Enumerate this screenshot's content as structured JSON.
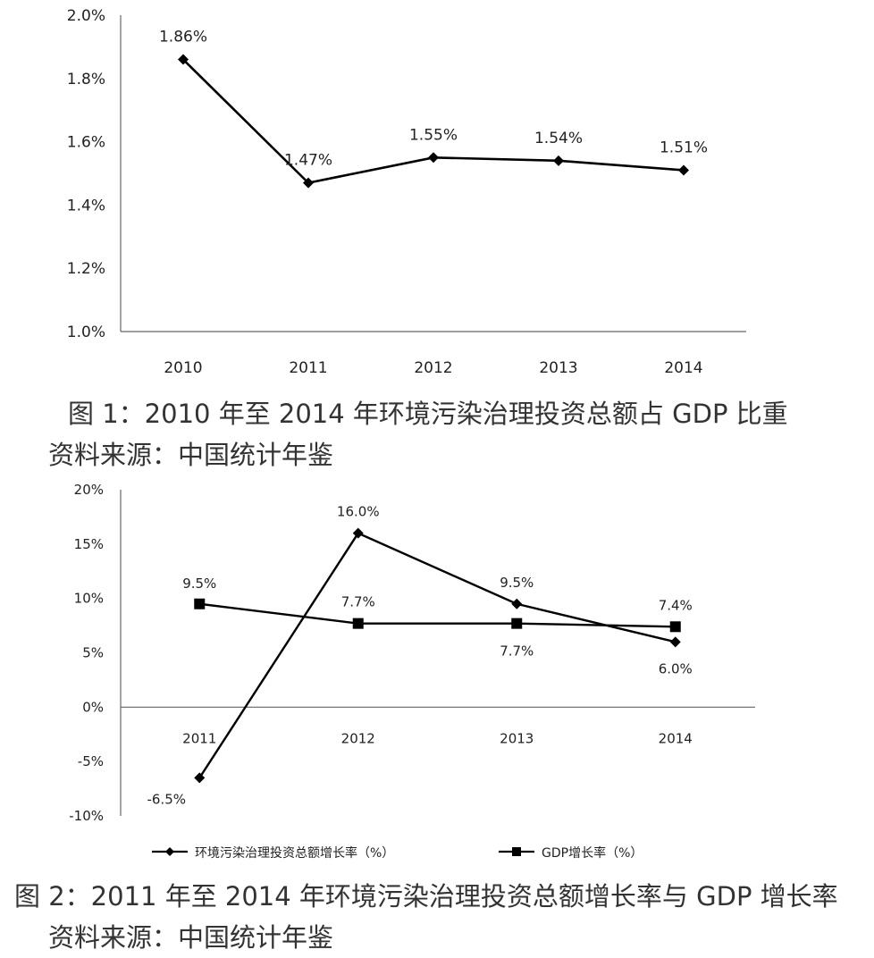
{
  "chart_data": [
    {
      "type": "line",
      "categories": [
        "2010",
        "2011",
        "2012",
        "2013",
        "2014"
      ],
      "series": [
        {
          "values": [
            1.86,
            1.47,
            1.55,
            1.54,
            1.51
          ],
          "labels": [
            "1.86%",
            "1.47%",
            "1.55%",
            "1.54%",
            "1.51%"
          ],
          "marker": "diamond"
        }
      ],
      "ylim": [
        1.0,
        2.0
      ],
      "yticks": [
        "2.0%",
        "1.8%",
        "1.6%",
        "1.4%",
        "1.2%",
        "1.0%"
      ],
      "grid": false,
      "color": "#000000"
    },
    {
      "type": "line",
      "categories": [
        "2011",
        "2012",
        "2013",
        "2014"
      ],
      "series": [
        {
          "name": "环境污染治理投资总额增长率（%）",
          "values": [
            -6.5,
            16.0,
            9.5,
            6.0
          ],
          "labels": [
            "-6.5%",
            "16.0%",
            "9.5%",
            "6.0%"
          ],
          "marker": "diamond"
        },
        {
          "name": "GDP增长率（%）",
          "values": [
            9.5,
            7.7,
            7.7,
            7.4
          ],
          "labels": [
            "9.5%",
            "7.7%",
            "7.7%",
            "7.4%"
          ],
          "marker": "square"
        }
      ],
      "ylim": [
        -10,
        20
      ],
      "yticks": [
        "20%",
        "15%",
        "10%",
        "5%",
        "0%",
        "-5%",
        "-10%"
      ],
      "legend": "bottom",
      "grid": false,
      "color": "#000000"
    }
  ],
  "captions": {
    "fig1": "图 1：2010 年至 2014 年环境污染治理投资总额占 GDP 比重",
    "source1": "资料来源：中国统计年鉴",
    "fig2": "图 2：2011 年至 2014 年环境污染治理投资总额增长率与 GDP 增长率",
    "source2": "资料来源：中国统计年鉴"
  }
}
